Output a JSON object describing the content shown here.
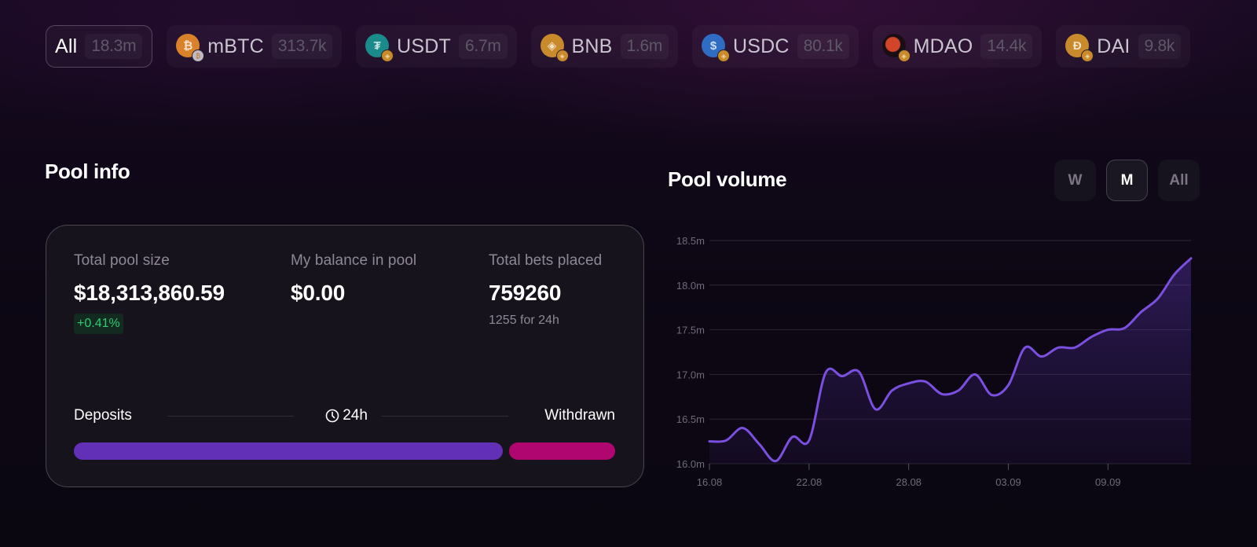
{
  "tokens": [
    {
      "name": "All",
      "amount": "18.3m",
      "active": true,
      "icon": "none"
    },
    {
      "name": "mBTC",
      "amount": "313.7k",
      "active": false,
      "icon": "bitcoin-icon",
      "color": "#d9822b",
      "glyph": "₿",
      "chain": "bitcoin"
    },
    {
      "name": "USDT",
      "amount": "6.7m",
      "active": false,
      "icon": "tether-icon",
      "color": "#1a8a8a",
      "glyph": "₮",
      "chain": "bnb"
    },
    {
      "name": "BNB",
      "amount": "1.6m",
      "active": false,
      "icon": "bnb-icon",
      "color": "#c88a2a",
      "glyph": "◈",
      "chain": "bnb"
    },
    {
      "name": "USDC",
      "amount": "80.1k",
      "active": false,
      "icon": "usdc-icon",
      "color": "#2f6cc4",
      "glyph": "$",
      "chain": "bnb"
    },
    {
      "name": "MDAO",
      "amount": "14.4k",
      "active": false,
      "icon": "mdao-icon",
      "color": "#1a0e14",
      "glyph": "◍",
      "chain": "bnb"
    },
    {
      "name": "DAI",
      "amount": "9.8k",
      "active": false,
      "icon": "dai-icon",
      "color": "#c88a2a",
      "glyph": "Đ",
      "chain": "bnb"
    }
  ],
  "pool_info": {
    "title": "Pool info",
    "total_pool_size": {
      "label": "Total pool size",
      "value": "$18,313,860.59",
      "change": "+0.41%"
    },
    "my_balance": {
      "label": "My balance in pool",
      "value": "$0.00"
    },
    "total_bets": {
      "label": "Total bets placed",
      "value": "759260",
      "sub": "1255 for 24h"
    },
    "flow": {
      "deposits_label": "Deposits",
      "period_label": "24h",
      "withdrawn_label": "Withdrawn",
      "period_icon": "clock-icon"
    },
    "colors": {
      "deposits": "#6130b6",
      "withdrawn": "#b0066f",
      "positive": "#2ecc71"
    }
  },
  "pool_volume": {
    "title": "Pool volume",
    "periods": [
      {
        "label": "W",
        "active": false
      },
      {
        "label": "M",
        "active": true
      },
      {
        "label": "All",
        "active": false
      }
    ]
  },
  "chart_data": {
    "type": "area",
    "title": "Pool volume",
    "xlabel": "",
    "ylabel": "",
    "ylim": [
      16.0,
      18.5
    ],
    "y_ticks": [
      "16.0m",
      "16.5m",
      "17.0m",
      "17.5m",
      "18.0m",
      "18.5m"
    ],
    "x_ticks": [
      "16.08",
      "22.08",
      "28.08",
      "03.09",
      "09.09"
    ],
    "grid": true,
    "line_color": "#7b4fe0",
    "x": [
      "16.08",
      "17.08",
      "18.08",
      "19.08",
      "20.08",
      "21.08",
      "22.08",
      "23.08",
      "24.08",
      "25.08",
      "26.08",
      "27.08",
      "28.08",
      "29.08",
      "30.08",
      "31.08",
      "01.09",
      "02.09",
      "03.09",
      "04.09",
      "05.09",
      "06.09",
      "07.09",
      "08.09",
      "09.09",
      "10.09",
      "11.09",
      "12.09",
      "13.09",
      "14.09"
    ],
    "series": [
      {
        "name": "Pool volume (m)",
        "values": [
          16.25,
          16.26,
          16.4,
          16.22,
          16.03,
          16.3,
          16.26,
          17.02,
          16.98,
          17.03,
          16.61,
          16.82,
          16.9,
          16.92,
          16.78,
          16.82,
          17.0,
          16.77,
          16.88,
          17.3,
          17.2,
          17.3,
          17.3,
          17.42,
          17.5,
          17.52,
          17.7,
          17.85,
          18.12,
          18.3
        ]
      }
    ]
  }
}
